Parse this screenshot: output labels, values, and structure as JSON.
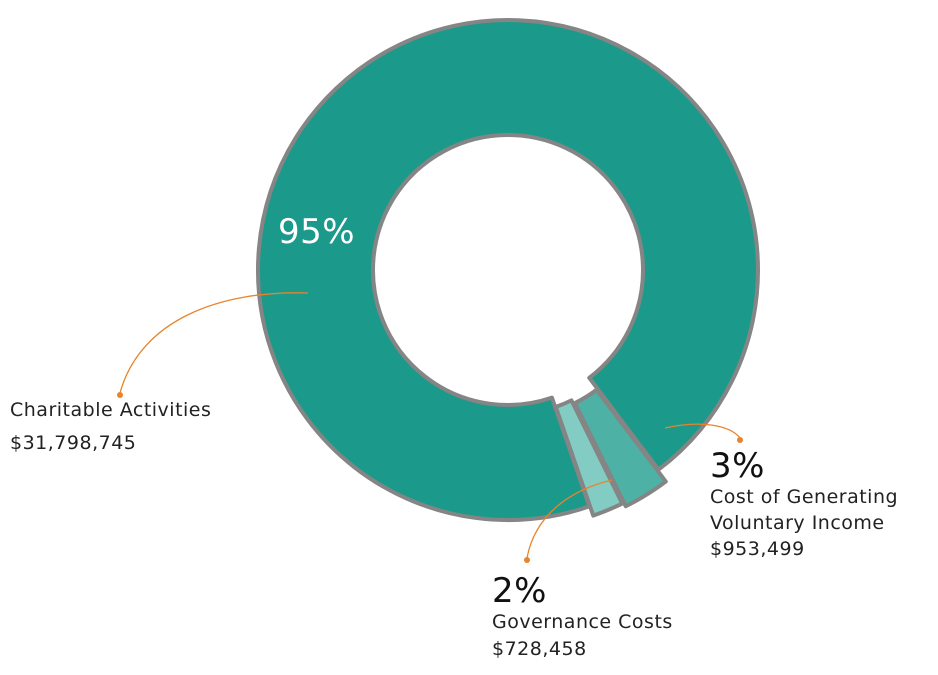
{
  "chart_data": {
    "type": "pie",
    "categories": [
      "Charitable Activities",
      "Cost of Generating Voluntary Income",
      "Governance Costs"
    ],
    "values": [
      95,
      3,
      2
    ],
    "value_labels": [
      "95%",
      "3%",
      "2%"
    ],
    "amounts": [
      "$31,798,745",
      "$953,499",
      "$728,458"
    ],
    "colors": [
      "#1b9a8b",
      "#4db1a5",
      "#82ccc3"
    ],
    "donut": true
  }
}
